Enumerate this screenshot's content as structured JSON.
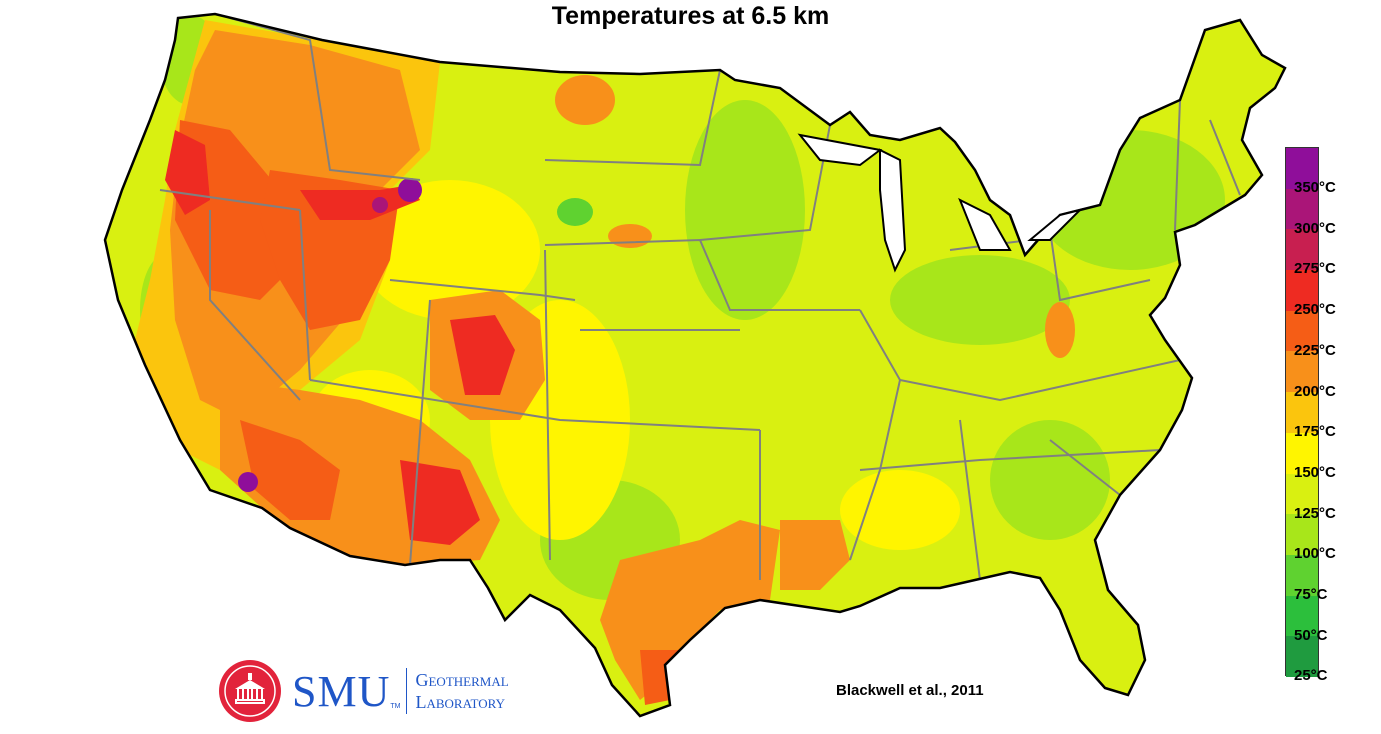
{
  "title": "Temperatures at 6.5 km",
  "citation": "Blackwell et al., 2011",
  "logo": {
    "wordmark": "SMU",
    "trademark": "TM",
    "line1": "Geothermal",
    "line2": "Laboratory"
  },
  "legend": {
    "labels": [
      "350°C",
      "300°C",
      "275°C",
      "250°C",
      "225°C",
      "200°C",
      "175°C",
      "150°C",
      "125°C",
      "100°C",
      "75°C",
      "50°C",
      "25°C"
    ],
    "colors": [
      "#8f0e9a",
      "#aa1578",
      "#c81f50",
      "#ee2b22",
      "#f55d16",
      "#f8901a",
      "#fbc50d",
      "#fff500",
      "#d9f011",
      "#a8e61a",
      "#5fd230",
      "#2cbf3c",
      "#1f9b3f"
    ]
  },
  "colors": {
    "low": "#a8e61a",
    "mid": "#fff500",
    "warm": "#f8901a",
    "hot": "#ee2b22",
    "very_hot": "#8f0e9a",
    "border": "#808080",
    "coast": "#000000",
    "smu_blue": "#1f56c7",
    "smu_red": "#e2233b"
  }
}
